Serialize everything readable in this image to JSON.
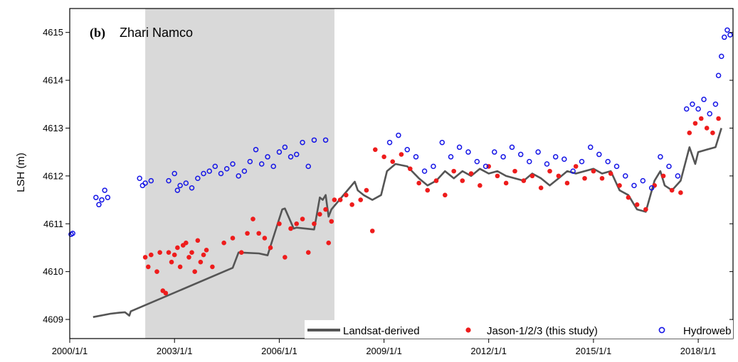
{
  "chart_data": {
    "type": "scatter",
    "panel_tag": "(b)",
    "title": "Zhari Namco",
    "ylabel": "LSH (m)",
    "xlabel": "",
    "xlim": [
      "2000-01-01",
      "2018-12-31"
    ],
    "ylim": [
      4608.6,
      4615.5
    ],
    "x_ticks": [
      "2000/1/1",
      "2003/1/1",
      "2006/1/1",
      "2009/1/1",
      "2012/1/1",
      "2015/1/1",
      "2018/1/1"
    ],
    "y_ticks": [
      "4609",
      "4610",
      "4611",
      "4612",
      "4613",
      "4614",
      "4615"
    ],
    "grid": false,
    "legend_position": "bottom",
    "shaded_period": [
      "2002-03-01",
      "2007-08-01"
    ],
    "colors": {
      "landsat": "#555555",
      "jason": "#ee1c1c",
      "hydroweb": "#1515e6",
      "shade": "#d9d9d9"
    },
    "series": [
      {
        "name": "Landsat-derived",
        "style": "line",
        "points": [
          [
            "2000-09-01",
            4609.05
          ],
          [
            "2001-03-01",
            4609.12
          ],
          [
            "2001-06-01",
            4609.14
          ],
          [
            "2001-08-01",
            4609.15
          ],
          [
            "2001-09-15",
            4609.08
          ],
          [
            "2001-10-01",
            4609.17
          ],
          [
            "2004-09-01",
            4610.08
          ],
          [
            "2004-11-01",
            4610.4
          ],
          [
            "2005-06-01",
            4610.38
          ],
          [
            "2005-09-01",
            4610.34
          ],
          [
            "2006-02-01",
            4611.3
          ],
          [
            "2006-03-01",
            4611.32
          ],
          [
            "2006-06-01",
            4610.9
          ],
          [
            "2006-07-01",
            4610.92
          ],
          [
            "2007-01-01",
            4610.88
          ],
          [
            "2007-03-01",
            4611.55
          ],
          [
            "2007-04-01",
            4611.5
          ],
          [
            "2007-05-01",
            4611.6
          ],
          [
            "2007-06-01",
            4611.15
          ],
          [
            "2007-07-01",
            4611.3
          ],
          [
            "2008-03-01",
            4611.88
          ],
          [
            "2008-04-01",
            4611.7
          ],
          [
            "2008-06-01",
            4611.6
          ],
          [
            "2008-09-01",
            4611.5
          ],
          [
            "2008-12-01",
            4611.6
          ],
          [
            "2009-02-01",
            4612.1
          ],
          [
            "2009-05-01",
            4612.25
          ],
          [
            "2009-09-01",
            4612.2
          ],
          [
            "2010-01-01",
            4611.95
          ],
          [
            "2010-04-01",
            4611.8
          ],
          [
            "2010-07-01",
            4611.9
          ],
          [
            "2010-10-01",
            4612.1
          ],
          [
            "2011-01-01",
            4611.95
          ],
          [
            "2011-04-01",
            4612.1
          ],
          [
            "2011-07-01",
            4612.0
          ],
          [
            "2011-10-01",
            4612.15
          ],
          [
            "2012-01-01",
            4612.05
          ],
          [
            "2012-04-01",
            4612.1
          ],
          [
            "2012-07-01",
            4612.0
          ],
          [
            "2012-10-01",
            4611.95
          ],
          [
            "2013-01-01",
            4611.9
          ],
          [
            "2013-04-01",
            4612.05
          ],
          [
            "2013-07-01",
            4611.95
          ],
          [
            "2013-10-01",
            4611.8
          ],
          [
            "2014-01-01",
            4611.95
          ],
          [
            "2014-04-01",
            4612.1
          ],
          [
            "2014-07-01",
            4612.05
          ],
          [
            "2014-10-01",
            4612.1
          ],
          [
            "2015-01-01",
            4612.15
          ],
          [
            "2015-04-01",
            4612.05
          ],
          [
            "2015-07-01",
            4612.1
          ],
          [
            "2015-10-01",
            4611.7
          ],
          [
            "2016-01-01",
            4611.6
          ],
          [
            "2016-04-01",
            4611.3
          ],
          [
            "2016-07-01",
            4611.25
          ],
          [
            "2016-10-01",
            4611.9
          ],
          [
            "2016-12-01",
            4612.1
          ],
          [
            "2017-01-15",
            4611.8
          ],
          [
            "2017-04-01",
            4611.7
          ],
          [
            "2017-07-01",
            4611.9
          ],
          [
            "2017-10-01",
            4612.6
          ],
          [
            "2017-12-01",
            4612.25
          ],
          [
            "2018-01-01",
            4612.5
          ],
          [
            "2018-04-01",
            4612.55
          ],
          [
            "2018-07-01",
            4612.6
          ],
          [
            "2018-09-01",
            4613.0
          ]
        ]
      },
      {
        "name": "Jason-1/2/3 (this study)",
        "style": "filled-dot",
        "points": [
          [
            "2002-03-01",
            4610.3
          ],
          [
            "2002-04-01",
            4610.1
          ],
          [
            "2002-05-01",
            4610.35
          ],
          [
            "2002-07-01",
            4610.0
          ],
          [
            "2002-08-01",
            4610.4
          ],
          [
            "2002-09-01",
            4609.6
          ],
          [
            "2002-10-01",
            4609.55
          ],
          [
            "2002-11-01",
            4610.4
          ],
          [
            "2002-12-01",
            4610.2
          ],
          [
            "2003-01-01",
            4610.35
          ],
          [
            "2003-02-01",
            4610.5
          ],
          [
            "2003-03-01",
            4610.1
          ],
          [
            "2003-04-01",
            4610.55
          ],
          [
            "2003-05-01",
            4610.6
          ],
          [
            "2003-06-01",
            4610.3
          ],
          [
            "2003-07-01",
            4610.4
          ],
          [
            "2003-08-01",
            4610.0
          ],
          [
            "2003-09-01",
            4610.65
          ],
          [
            "2003-10-01",
            4610.2
          ],
          [
            "2003-11-01",
            4610.35
          ],
          [
            "2003-12-01",
            4610.45
          ],
          [
            "2004-02-01",
            4610.1
          ],
          [
            "2004-06-01",
            4610.6
          ],
          [
            "2004-09-01",
            4610.7
          ],
          [
            "2004-12-01",
            4610.4
          ],
          [
            "2005-02-01",
            4610.8
          ],
          [
            "2005-04-01",
            4611.1
          ],
          [
            "2005-06-01",
            4610.8
          ],
          [
            "2005-08-01",
            4610.7
          ],
          [
            "2005-10-01",
            4610.5
          ],
          [
            "2006-01-01",
            4611.0
          ],
          [
            "2006-03-01",
            4610.3
          ],
          [
            "2006-05-01",
            4610.9
          ],
          [
            "2006-07-01",
            4611.0
          ],
          [
            "2006-09-01",
            4611.1
          ],
          [
            "2006-11-01",
            4610.4
          ],
          [
            "2007-01-01",
            4611.0
          ],
          [
            "2007-03-01",
            4611.2
          ],
          [
            "2007-05-01",
            4611.3
          ],
          [
            "2007-06-01",
            4610.6
          ],
          [
            "2007-07-01",
            4611.05
          ],
          [
            "2007-08-01",
            4611.5
          ],
          [
            "2007-10-01",
            4611.5
          ],
          [
            "2007-12-01",
            4611.6
          ],
          [
            "2008-02-01",
            4611.4
          ],
          [
            "2008-05-01",
            4611.5
          ],
          [
            "2008-07-01",
            4611.7
          ],
          [
            "2008-09-01",
            4610.85
          ],
          [
            "2008-10-01",
            4612.55
          ],
          [
            "2009-01-01",
            4612.4
          ],
          [
            "2009-04-01",
            4612.3
          ],
          [
            "2009-07-01",
            4612.45
          ],
          [
            "2009-10-01",
            4612.15
          ],
          [
            "2010-01-01",
            4611.85
          ],
          [
            "2010-04-01",
            4611.7
          ],
          [
            "2010-07-01",
            4611.9
          ],
          [
            "2010-10-01",
            4611.6
          ],
          [
            "2011-01-01",
            4612.1
          ],
          [
            "2011-04-01",
            4611.9
          ],
          [
            "2011-07-01",
            4612.05
          ],
          [
            "2011-10-01",
            4611.8
          ],
          [
            "2012-01-01",
            4612.2
          ],
          [
            "2012-04-01",
            4612.0
          ],
          [
            "2012-07-01",
            4611.85
          ],
          [
            "2012-10-01",
            4612.1
          ],
          [
            "2013-01-01",
            4611.9
          ],
          [
            "2013-04-01",
            4612.0
          ],
          [
            "2013-07-01",
            4611.75
          ],
          [
            "2013-10-01",
            4612.1
          ],
          [
            "2014-01-01",
            4612.0
          ],
          [
            "2014-04-01",
            4611.85
          ],
          [
            "2014-07-01",
            4612.2
          ],
          [
            "2014-10-01",
            4611.95
          ],
          [
            "2015-01-01",
            4612.1
          ],
          [
            "2015-04-01",
            4611.95
          ],
          [
            "2015-07-01",
            4612.05
          ],
          [
            "2015-10-01",
            4611.8
          ],
          [
            "2016-01-01",
            4611.55
          ],
          [
            "2016-04-01",
            4611.4
          ],
          [
            "2016-07-01",
            4611.3
          ],
          [
            "2016-10-01",
            4611.8
          ],
          [
            "2017-01-01",
            4612.0
          ],
          [
            "2017-04-01",
            4611.7
          ],
          [
            "2017-07-01",
            4611.65
          ],
          [
            "2017-10-01",
            4612.9
          ],
          [
            "2017-12-01",
            4613.1
          ],
          [
            "2018-02-01",
            4613.2
          ],
          [
            "2018-04-01",
            4613.0
          ],
          [
            "2018-06-01",
            4612.9
          ],
          [
            "2018-08-01",
            4613.2
          ]
        ]
      },
      {
        "name": "Hydroweb",
        "style": "open-circle",
        "points": [
          [
            "2000-01-15",
            4610.78
          ],
          [
            "2000-02-01",
            4610.8
          ],
          [
            "2000-10-01",
            4611.55
          ],
          [
            "2000-11-01",
            4611.4
          ],
          [
            "2000-12-01",
            4611.5
          ],
          [
            "2001-01-01",
            4611.7
          ],
          [
            "2001-02-01",
            4611.55
          ],
          [
            "2002-01-01",
            4611.95
          ],
          [
            "2002-02-01",
            4611.8
          ],
          [
            "2002-03-01",
            4611.85
          ],
          [
            "2002-05-01",
            4611.9
          ],
          [
            "2002-11-01",
            4611.9
          ],
          [
            "2003-01-01",
            4612.05
          ],
          [
            "2003-02-01",
            4611.7
          ],
          [
            "2003-03-01",
            4611.8
          ],
          [
            "2003-05-01",
            4611.85
          ],
          [
            "2003-07-01",
            4611.75
          ],
          [
            "2003-09-01",
            4611.95
          ],
          [
            "2003-11-01",
            4612.05
          ],
          [
            "2004-01-01",
            4612.1
          ],
          [
            "2004-03-01",
            4612.2
          ],
          [
            "2004-05-01",
            4612.05
          ],
          [
            "2004-07-01",
            4612.15
          ],
          [
            "2004-09-01",
            4612.25
          ],
          [
            "2004-11-01",
            4612.0
          ],
          [
            "2005-01-01",
            4612.1
          ],
          [
            "2005-03-01",
            4612.3
          ],
          [
            "2005-05-01",
            4612.55
          ],
          [
            "2005-07-01",
            4612.25
          ],
          [
            "2005-09-01",
            4612.4
          ],
          [
            "2005-11-01",
            4612.2
          ],
          [
            "2006-01-01",
            4612.5
          ],
          [
            "2006-03-01",
            4612.6
          ],
          [
            "2006-05-01",
            4612.4
          ],
          [
            "2006-07-01",
            4612.45
          ],
          [
            "2006-09-01",
            4612.7
          ],
          [
            "2006-11-01",
            4612.2
          ],
          [
            "2007-01-01",
            4612.75
          ],
          [
            "2007-05-01",
            4612.75
          ],
          [
            "2009-03-01",
            4612.7
          ],
          [
            "2009-06-01",
            4612.85
          ],
          [
            "2009-09-01",
            4612.55
          ],
          [
            "2009-12-01",
            4612.4
          ],
          [
            "2010-03-01",
            4612.1
          ],
          [
            "2010-06-01",
            4612.2
          ],
          [
            "2010-09-01",
            4612.7
          ],
          [
            "2010-12-01",
            4612.4
          ],
          [
            "2011-03-01",
            4612.6
          ],
          [
            "2011-06-01",
            4612.5
          ],
          [
            "2011-09-01",
            4612.3
          ],
          [
            "2011-12-01",
            4612.2
          ],
          [
            "2012-03-01",
            4612.5
          ],
          [
            "2012-06-01",
            4612.4
          ],
          [
            "2012-09-01",
            4612.6
          ],
          [
            "2012-12-01",
            4612.45
          ],
          [
            "2013-03-01",
            4612.3
          ],
          [
            "2013-06-01",
            4612.5
          ],
          [
            "2013-09-01",
            4612.25
          ],
          [
            "2013-12-01",
            4612.4
          ],
          [
            "2014-03-01",
            4612.35
          ],
          [
            "2014-06-01",
            4612.1
          ],
          [
            "2014-09-01",
            4612.3
          ],
          [
            "2014-12-01",
            4612.6
          ],
          [
            "2015-03-01",
            4612.45
          ],
          [
            "2015-06-01",
            4612.3
          ],
          [
            "2015-09-01",
            4612.2
          ],
          [
            "2015-12-01",
            4612.0
          ],
          [
            "2016-03-01",
            4611.8
          ],
          [
            "2016-06-01",
            4611.9
          ],
          [
            "2016-09-01",
            4611.75
          ],
          [
            "2016-12-01",
            4612.4
          ],
          [
            "2017-03-01",
            4612.2
          ],
          [
            "2017-06-01",
            4612.0
          ],
          [
            "2017-09-01",
            4613.4
          ],
          [
            "2017-11-01",
            4613.5
          ],
          [
            "2018-01-01",
            4613.4
          ],
          [
            "2018-03-01",
            4613.6
          ],
          [
            "2018-05-01",
            4613.3
          ],
          [
            "2018-07-01",
            4613.5
          ],
          [
            "2018-08-01",
            4614.1
          ],
          [
            "2018-09-01",
            4614.5
          ],
          [
            "2018-10-01",
            4614.9
          ],
          [
            "2018-11-01",
            4615.05
          ],
          [
            "2018-12-01",
            4614.95
          ]
        ]
      }
    ]
  }
}
